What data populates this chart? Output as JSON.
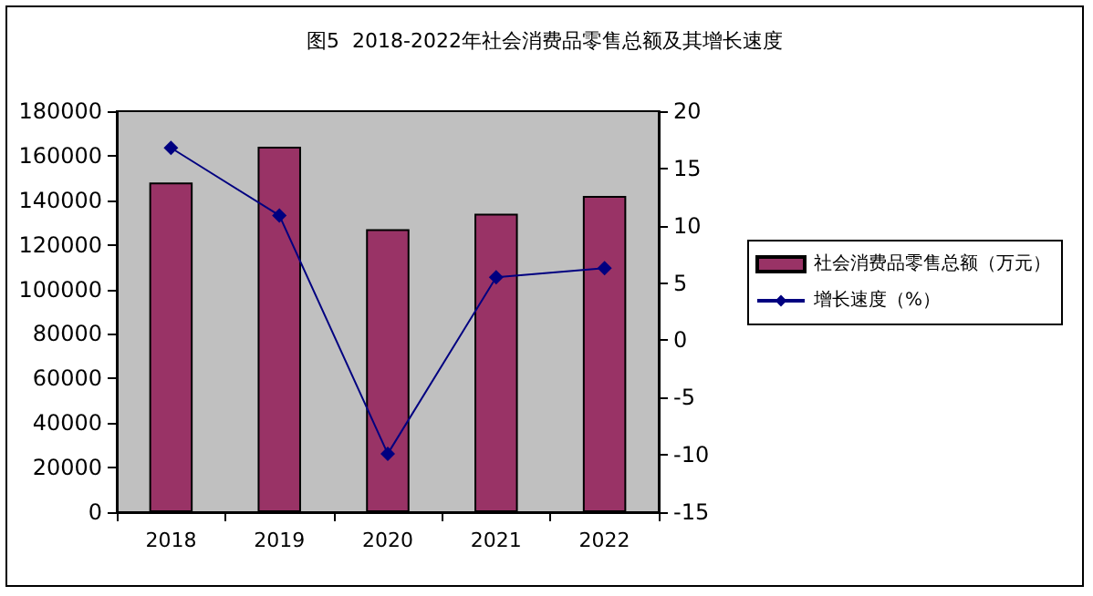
{
  "chart_data": {
    "type": "bar",
    "title": "图5  2018-2022年社会消费品零售总额及其增长速度",
    "categories": [
      "2018",
      "2019",
      "2020",
      "2021",
      "2022"
    ],
    "series": [
      {
        "name": "社会消费品零售总额（万元）",
        "color": "#993366",
        "values": [
          148000,
          164000,
          127000,
          134000,
          142000
        ]
      },
      {
        "name": "增长速度（%）",
        "type": "line",
        "axis": "y2",
        "color": "#000080",
        "marker": "diamond",
        "values": [
          16.8,
          10.9,
          -9.9,
          5.5,
          6.3
        ]
      }
    ],
    "ylim": [
      0,
      180000
    ],
    "yticks": [
      0,
      20000,
      40000,
      60000,
      80000,
      100000,
      120000,
      140000,
      160000,
      180000
    ],
    "y2lim": [
      -15,
      20
    ],
    "y2ticks": [
      -15,
      -10,
      -5,
      0,
      5,
      10,
      15,
      20
    ],
    "grid": false,
    "legend": "right"
  }
}
